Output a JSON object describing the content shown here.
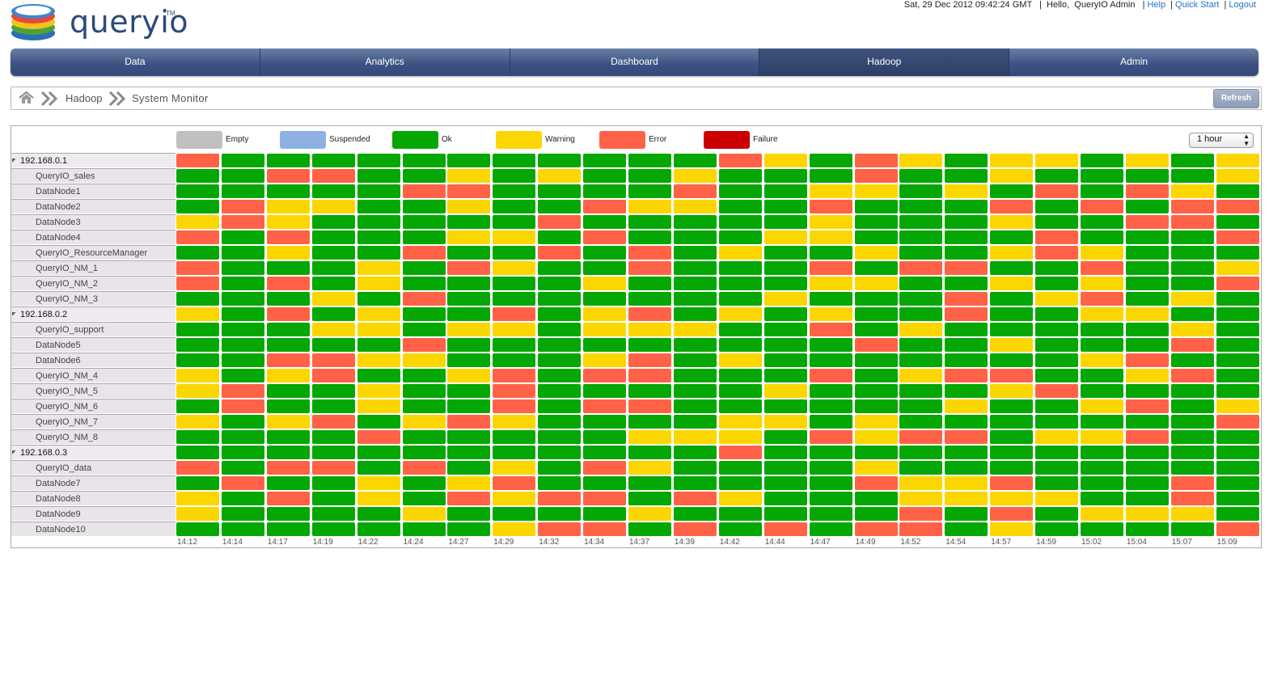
{
  "app": {
    "logo_text": "queryio",
    "logo_tm": "TM"
  },
  "topbar": {
    "datetime": "Sat, 29 Dec 2012 09:42:24 GMT",
    "greeting": "Hello,",
    "user": "QueryIO Admin",
    "help": "Help",
    "quickstart": "Quick Start",
    "logout": "Logout"
  },
  "nav": {
    "tabs": [
      {
        "label": "Data",
        "active": false
      },
      {
        "label": "Analytics",
        "active": false
      },
      {
        "label": "Dashboard",
        "active": false
      },
      {
        "label": "Hadoop",
        "active": true
      },
      {
        "label": "Admin",
        "active": false
      }
    ]
  },
  "breadcrumb": {
    "parent": "Hadoop",
    "current": "System Monitor",
    "refresh_label": "Refresh"
  },
  "legend": [
    {
      "label": "Empty",
      "color": "#c0c0c0"
    },
    {
      "label": "Suspended",
      "color": "#8eb1e3"
    },
    {
      "label": "Ok",
      "color": "#05a705"
    },
    {
      "label": "Warning",
      "color": "#fbd600"
    },
    {
      "label": "Error",
      "color": "#ff6247"
    },
    {
      "label": "Failure",
      "color": "#cc0000"
    }
  ],
  "time_range": {
    "selected": "1 hour"
  },
  "status_key": {
    "O": "ok",
    "W": "warning",
    "E": "error",
    "F": "failure"
  },
  "time_labels": [
    "14:12",
    "14:14",
    "14:17",
    "14:19",
    "14:22",
    "14:24",
    "14:27",
    "14:29",
    "14:32",
    "14:34",
    "14:37",
    "14:39",
    "14:42",
    "14:44",
    "14:47",
    "14:49",
    "14:52",
    "14:54",
    "14:57",
    "14:59",
    "15:02",
    "15:04",
    "15:07",
    "15:09"
  ],
  "rows": [
    {
      "label": "192.168.0.1",
      "type": "host",
      "states": "EOOOOOOOOOOOEWOEWOWWOWOW"
    },
    {
      "label": "QueryIO_sales",
      "type": "node",
      "states": "OOEEOOWOWOOWOOOEOOWOOOOW"
    },
    {
      "label": "DataNode1",
      "type": "node",
      "states": "OOOOOEEOOOOEOOWWOWOEOEWO"
    },
    {
      "label": "DataNode2",
      "type": "node",
      "states": "OEWWOOWOOEWWOOEOOOEOEOEE"
    },
    {
      "label": "DataNode3",
      "type": "node",
      "states": "WEWOOOOOEOOOOOWOOOWOOEEO"
    },
    {
      "label": "DataNode4",
      "type": "node",
      "states": "EOEOOOWWOEOOOWWOOOOEOOOE"
    },
    {
      "label": "QueryIO_ResourceManager",
      "type": "node",
      "states": "OOWOOEOOEOEOWOOWOOWEWOOO"
    },
    {
      "label": "QueryIO_NM_1",
      "type": "node",
      "states": "EOOOWOEWOOEOOOEOEEOOEOOW"
    },
    {
      "label": "QueryIO_NM_2",
      "type": "node",
      "states": "EOEOWOOOOWOOOOWWOOWOWOOE"
    },
    {
      "label": "QueryIO_NM_3",
      "type": "node",
      "states": "OOOWOEOOOOOOOWOOOEOWEOWO"
    },
    {
      "label": "192.168.0.2",
      "type": "host",
      "states": "WOEOWOOEOWEOWOWOOEOOWWOO"
    },
    {
      "label": "QueryIO_support",
      "type": "node",
      "states": "OOOWWOWWOWWWOOEOWOOOOOWO"
    },
    {
      "label": "DataNode5",
      "type": "node",
      "states": "OOOOOEOOOOOOOOOEOOWOOOEO"
    },
    {
      "label": "DataNode6",
      "type": "node",
      "states": "OOEEWWOOOWEOWOOOOOOOWEOO"
    },
    {
      "label": "QueryIO_NM_4",
      "type": "node",
      "states": "WOWEOOWEOEEOOOEOWEEOOWEO"
    },
    {
      "label": "QueryIO_NM_5",
      "type": "node",
      "states": "WEOOWOOEOOOOOWOOOOWEOOOO"
    },
    {
      "label": "QueryIO_NM_6",
      "type": "node",
      "states": "OEOOWOOEOEEOOOOOOWOOWEOW"
    },
    {
      "label": "QueryIO_NM_7",
      "type": "node",
      "states": "WOWEOWEWOOOOWWOWOOOOOOOE"
    },
    {
      "label": "QueryIO_NM_8",
      "type": "node",
      "states": "OOOOEOOOOOWWWOEWEEOWWEOO"
    },
    {
      "label": "192.168.0.3",
      "type": "host",
      "states": "OOOOOOOOOOOOEOOOOOOOOOOO"
    },
    {
      "label": "QueryIO_data",
      "type": "node",
      "states": "EOEEOEOWOEWOOOOWOOOOOOOO"
    },
    {
      "label": "DataNode7",
      "type": "node",
      "states": "OEOOWOWEOOOOOOOEWWEOOOEO"
    },
    {
      "label": "DataNode8",
      "type": "node",
      "states": "WOEOWOEWEEOEWOOOWWWWOOEO"
    },
    {
      "label": "DataNode9",
      "type": "node",
      "states": "WOOOOWOOOOWOOOOOEOEOWWWO"
    },
    {
      "label": "DataNode10",
      "type": "node",
      "states": "OOOOOOOWEEOEOEOEEOWOOOOE"
    }
  ]
}
